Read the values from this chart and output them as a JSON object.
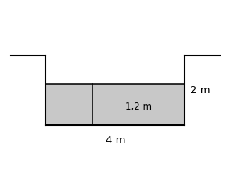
{
  "canal_bottom_y": 0.0,
  "canal_top_y": 2.0,
  "canal_left_x": 1.0,
  "canal_right_x": 5.0,
  "water_level_y": 1.2,
  "wing_left_x": 0.0,
  "wing_right_x": 6.0,
  "wing_y": 2.0,
  "label_width": "4 m",
  "label_depth": "1,2 m",
  "label_height": "2 m",
  "fill_color": "#c8c8c8",
  "line_color": "#000000",
  "bg_color": "#ffffff",
  "line_width": 1.5,
  "divider_x": 2.35,
  "xlim": [
    -0.3,
    6.8
  ],
  "ylim": [
    -0.65,
    3.0
  ],
  "figsize": [
    3.17,
    2.16
  ],
  "dpi": 100
}
